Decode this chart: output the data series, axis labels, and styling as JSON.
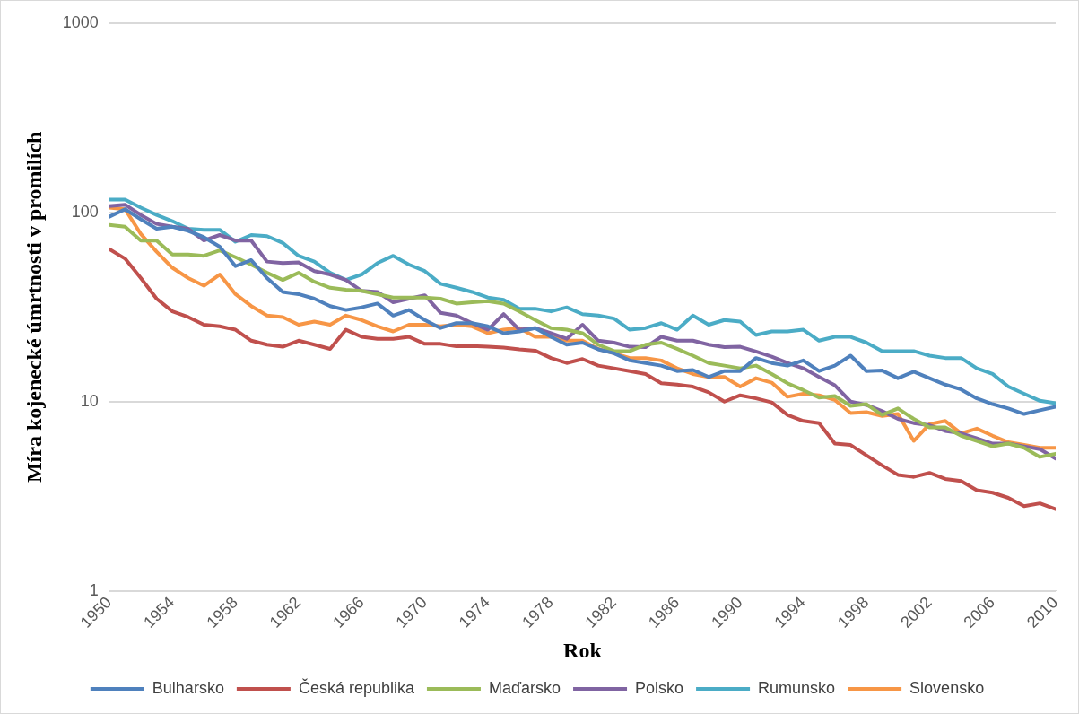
{
  "chart_data": {
    "type": "line",
    "xlabel": "Rok",
    "ylabel": "Míra kojenecké úmrtnosti v promilích",
    "x": [
      1950,
      1951,
      1952,
      1953,
      1954,
      1955,
      1956,
      1957,
      1958,
      1959,
      1960,
      1961,
      1962,
      1963,
      1964,
      1965,
      1966,
      1967,
      1968,
      1969,
      1970,
      1971,
      1972,
      1973,
      1974,
      1975,
      1976,
      1977,
      1978,
      1979,
      1980,
      1981,
      1982,
      1983,
      1984,
      1985,
      1986,
      1987,
      1988,
      1989,
      1990,
      1991,
      1992,
      1993,
      1994,
      1995,
      1996,
      1997,
      1998,
      1999,
      2000,
      2001,
      2002,
      2003,
      2004,
      2005,
      2006,
      2007,
      2008,
      2009,
      2010
    ],
    "xlim": [
      1950,
      2010
    ],
    "xticks": [
      1950,
      1954,
      1958,
      1962,
      1966,
      1970,
      1974,
      1978,
      1982,
      1986,
      1990,
      1994,
      1998,
      2002,
      2006,
      2010
    ],
    "ylim": [
      1,
      1000
    ],
    "yticks": [
      1,
      10,
      100,
      1000
    ],
    "log": "y",
    "grid": "y",
    "legend": "bottom",
    "marker": "none",
    "line_style": "solid",
    "series": [
      {
        "name": "Bulharsko",
        "color": "#4f81bd",
        "values": [
          95,
          104,
          92,
          82,
          84,
          80,
          74,
          66,
          52,
          56,
          45,
          38,
          37,
          35,
          32,
          30.5,
          31.5,
          33,
          28.5,
          30.5,
          27,
          24.5,
          26,
          26,
          25,
          23,
          23.5,
          24.5,
          22,
          20,
          20.5,
          18.9,
          18,
          16.5,
          16,
          15.5,
          14.5,
          14.7,
          13.5,
          14.5,
          14.5,
          17,
          16,
          15.5,
          16.5,
          14.5,
          15.5,
          17.5,
          14.5,
          14.6,
          13.3,
          14.4,
          13.3,
          12.3,
          11.6,
          10.4,
          9.7,
          9.2,
          8.6,
          9,
          9.4
        ]
      },
      {
        "name": "Česká republika",
        "color": "#c0504d",
        "values": [
          64,
          57,
          45,
          35,
          30,
          28,
          25.5,
          25,
          24,
          21,
          20,
          19.5,
          21,
          20,
          19,
          24,
          22,
          21.5,
          21.5,
          22,
          20.2,
          20.2,
          19.6,
          19.7,
          19.5,
          19.3,
          18.9,
          18.6,
          17,
          16,
          16.8,
          15.5,
          15,
          14.5,
          14,
          12.5,
          12.3,
          12,
          11.2,
          10,
          10.8,
          10.4,
          9.9,
          8.5,
          7.9,
          7.7,
          6,
          5.9,
          5.2,
          4.6,
          4.1,
          4,
          4.2,
          3.9,
          3.8,
          3.4,
          3.3,
          3.1,
          2.8,
          2.9,
          2.7
        ]
      },
      {
        "name": "Maďarsko",
        "color": "#9bbb59",
        "values": [
          86,
          84,
          71,
          71,
          60,
          60,
          59,
          63,
          58,
          53,
          48,
          44,
          48,
          43,
          40,
          39,
          38.5,
          37,
          35.5,
          35.5,
          35.5,
          35,
          33,
          33.5,
          34,
          33,
          30,
          27,
          24.5,
          24,
          23,
          20,
          18.5,
          18.5,
          20,
          20.5,
          19,
          17.5,
          16,
          15.5,
          15,
          15.5,
          14,
          12.5,
          11.5,
          10.5,
          10.7,
          9.5,
          9.7,
          8.5,
          9.2,
          8.1,
          7.3,
          7.3,
          6.6,
          6.2,
          5.8,
          6,
          5.7,
          5.1,
          5.3
        ]
      },
      {
        "name": "Polsko",
        "color": "#8064a2",
        "values": [
          108,
          110,
          97,
          87,
          84,
          82,
          71,
          76,
          71,
          71,
          55,
          54,
          54.5,
          49,
          47,
          44,
          38.5,
          38,
          33.5,
          35,
          36.5,
          29.5,
          28.5,
          26,
          24,
          29,
          24,
          24.5,
          23,
          21.5,
          25.5,
          21,
          20.5,
          19.5,
          19.4,
          22,
          21,
          21,
          20,
          19.4,
          19.5,
          18.4,
          17.3,
          16,
          15,
          13.5,
          12.2,
          10,
          9.6,
          8.9,
          8.1,
          7.7,
          7.5,
          7,
          6.8,
          6.4,
          6,
          6,
          5.8,
          5.6,
          5
        ]
      },
      {
        "name": "Rumunsko",
        "color": "#4bacc6",
        "values": [
          117,
          117,
          106,
          97,
          90,
          82,
          81,
          81,
          70,
          76,
          75,
          69,
          59,
          55,
          48,
          44,
          47,
          54,
          59,
          53,
          49,
          42,
          40,
          38,
          35.5,
          34.5,
          31,
          31,
          30,
          31.5,
          29,
          28.5,
          27.5,
          24,
          24.5,
          26,
          24,
          28.5,
          25.5,
          27,
          26.5,
          22.5,
          23.5,
          23.5,
          24,
          21,
          22,
          22,
          20.5,
          18.5,
          18.5,
          18.5,
          17.5,
          17,
          17,
          15,
          14,
          12,
          11,
          10.1,
          9.8
        ]
      },
      {
        "name": "Slovensko",
        "color": "#f79646",
        "values": [
          106,
          104,
          77,
          62,
          51,
          45,
          41,
          47,
          37,
          32,
          28.5,
          28,
          25.5,
          26.5,
          25.5,
          28.5,
          27,
          25,
          23.5,
          25.5,
          25.5,
          25,
          25.5,
          25,
          23,
          24,
          24.5,
          22,
          22,
          21,
          21,
          19,
          18,
          17,
          17,
          16.5,
          15,
          14,
          13.5,
          13.5,
          12,
          13.3,
          12.6,
          10.6,
          11,
          10.8,
          10.2,
          8.7,
          8.8,
          8.4,
          8.6,
          6.2,
          7.6,
          7.9,
          6.8,
          7.2,
          6.6,
          6.1,
          5.9,
          5.7,
          5.7
        ]
      }
    ]
  }
}
